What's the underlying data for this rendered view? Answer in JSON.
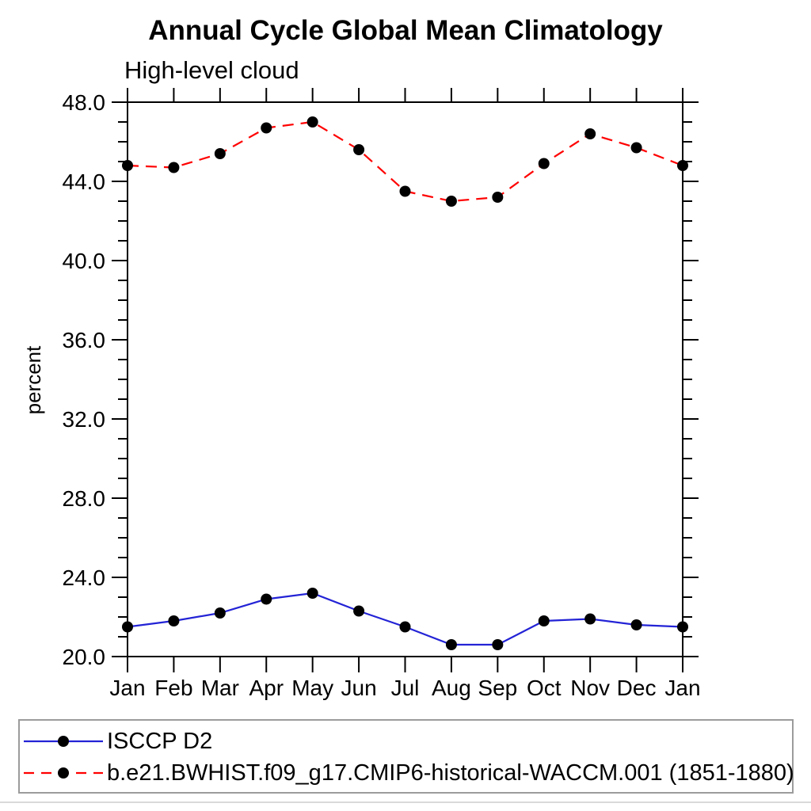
{
  "chart_data": {
    "type": "line",
    "title": "Annual Cycle Global Mean Climatology",
    "subtitle": "High-level cloud",
    "xlabel": "",
    "ylabel": "percent",
    "x_categories": [
      "Jan",
      "Feb",
      "Mar",
      "Apr",
      "May",
      "Jun",
      "Jul",
      "Aug",
      "Sep",
      "Oct",
      "Nov",
      "Dec",
      "Jan"
    ],
    "ylim": [
      20.0,
      48.0
    ],
    "y_major_ticks": [
      20.0,
      24.0,
      28.0,
      32.0,
      36.0,
      40.0,
      44.0,
      48.0
    ],
    "y_tick_labels": [
      "20.0",
      "24.0",
      "28.0",
      "32.0",
      "36.0",
      "40.0",
      "44.0",
      "48.0"
    ],
    "y_minor_step": 1.0,
    "grid": false,
    "legend_position": "bottom",
    "axis_color": "#000000",
    "marker_color": "#000000",
    "series": [
      {
        "name": "ISCCP D2",
        "color": "#2323d6",
        "line_style": "solid",
        "marker": "circle",
        "values": [
          21.5,
          21.8,
          22.2,
          22.9,
          23.2,
          22.3,
          21.5,
          20.6,
          20.6,
          21.8,
          21.9,
          21.6,
          21.5
        ]
      },
      {
        "name": "b.e21.BWHIST.f09_g17.CMIP6-historical-WACCM.001 (1851-1880)",
        "color": "#ff0000",
        "line_style": "dashed",
        "marker": "circle",
        "values": [
          44.8,
          44.7,
          45.4,
          46.7,
          47.0,
          45.6,
          43.5,
          43.0,
          43.2,
          44.9,
          46.4,
          45.7,
          44.8
        ]
      }
    ]
  }
}
